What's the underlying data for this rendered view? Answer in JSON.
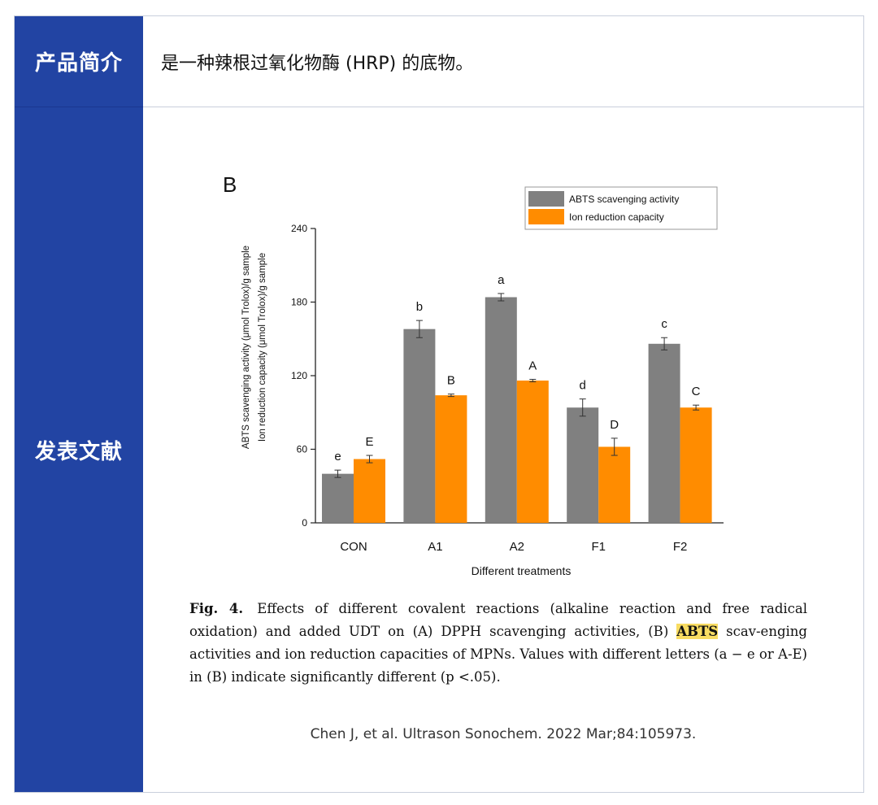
{
  "labels": {
    "intro": "产品简介",
    "literature": "发表文献"
  },
  "intro_text": "是一种辣根过氧化物酶 (HRP) 的底物。",
  "caption": {
    "fig_label": "Fig. 4.",
    "text_before": "Effects of different covalent reactions (alkaline reaction and free radical oxidation) and added UDT on (A) DPPH scavenging activities, (B)",
    "highlight": "ABTS",
    "text_after": "scav-enging activities and ion reduction capacities of MPNs. Values with different letters (a − e or A-E) in (B) indicate significantly different (p <.05)."
  },
  "citation": "Chen J, et al. Ultrason Sonochem. 2022 Mar;84:105973.",
  "colors": {
    "accent": "#2244a3",
    "series1": "#808080",
    "series2": "#ff8c00",
    "highlight": "#f8dc62"
  },
  "chart_data": {
    "type": "bar",
    "panel_label": "B",
    "title": "",
    "categories": [
      "CON",
      "A1",
      "A2",
      "F1",
      "F2"
    ],
    "series": [
      {
        "name": "ABTS scavenging activity",
        "color": "#808080",
        "values": [
          40,
          158,
          184,
          94,
          146
        ],
        "errors": [
          3,
          7,
          3,
          7,
          5
        ],
        "letters": [
          "e",
          "b",
          "a",
          "d",
          "c"
        ]
      },
      {
        "name": "Ion reduction capacity",
        "color": "#ff8c00",
        "values": [
          52,
          104,
          116,
          62,
          94
        ],
        "errors": [
          3,
          1,
          1,
          7,
          2
        ],
        "letters": [
          "E",
          "B",
          "A",
          "D",
          "C"
        ]
      }
    ],
    "xlabel": "Different treatments",
    "ylabel_lines": [
      "ABTS scavenging activity (μmol Trolox)/g sample",
      "Ion reduction capacity (μmol Trolox)/g sample"
    ],
    "ylim": [
      0,
      240
    ],
    "yticks": [
      0,
      60,
      120,
      180,
      240
    ],
    "legend_position": "top-right"
  }
}
